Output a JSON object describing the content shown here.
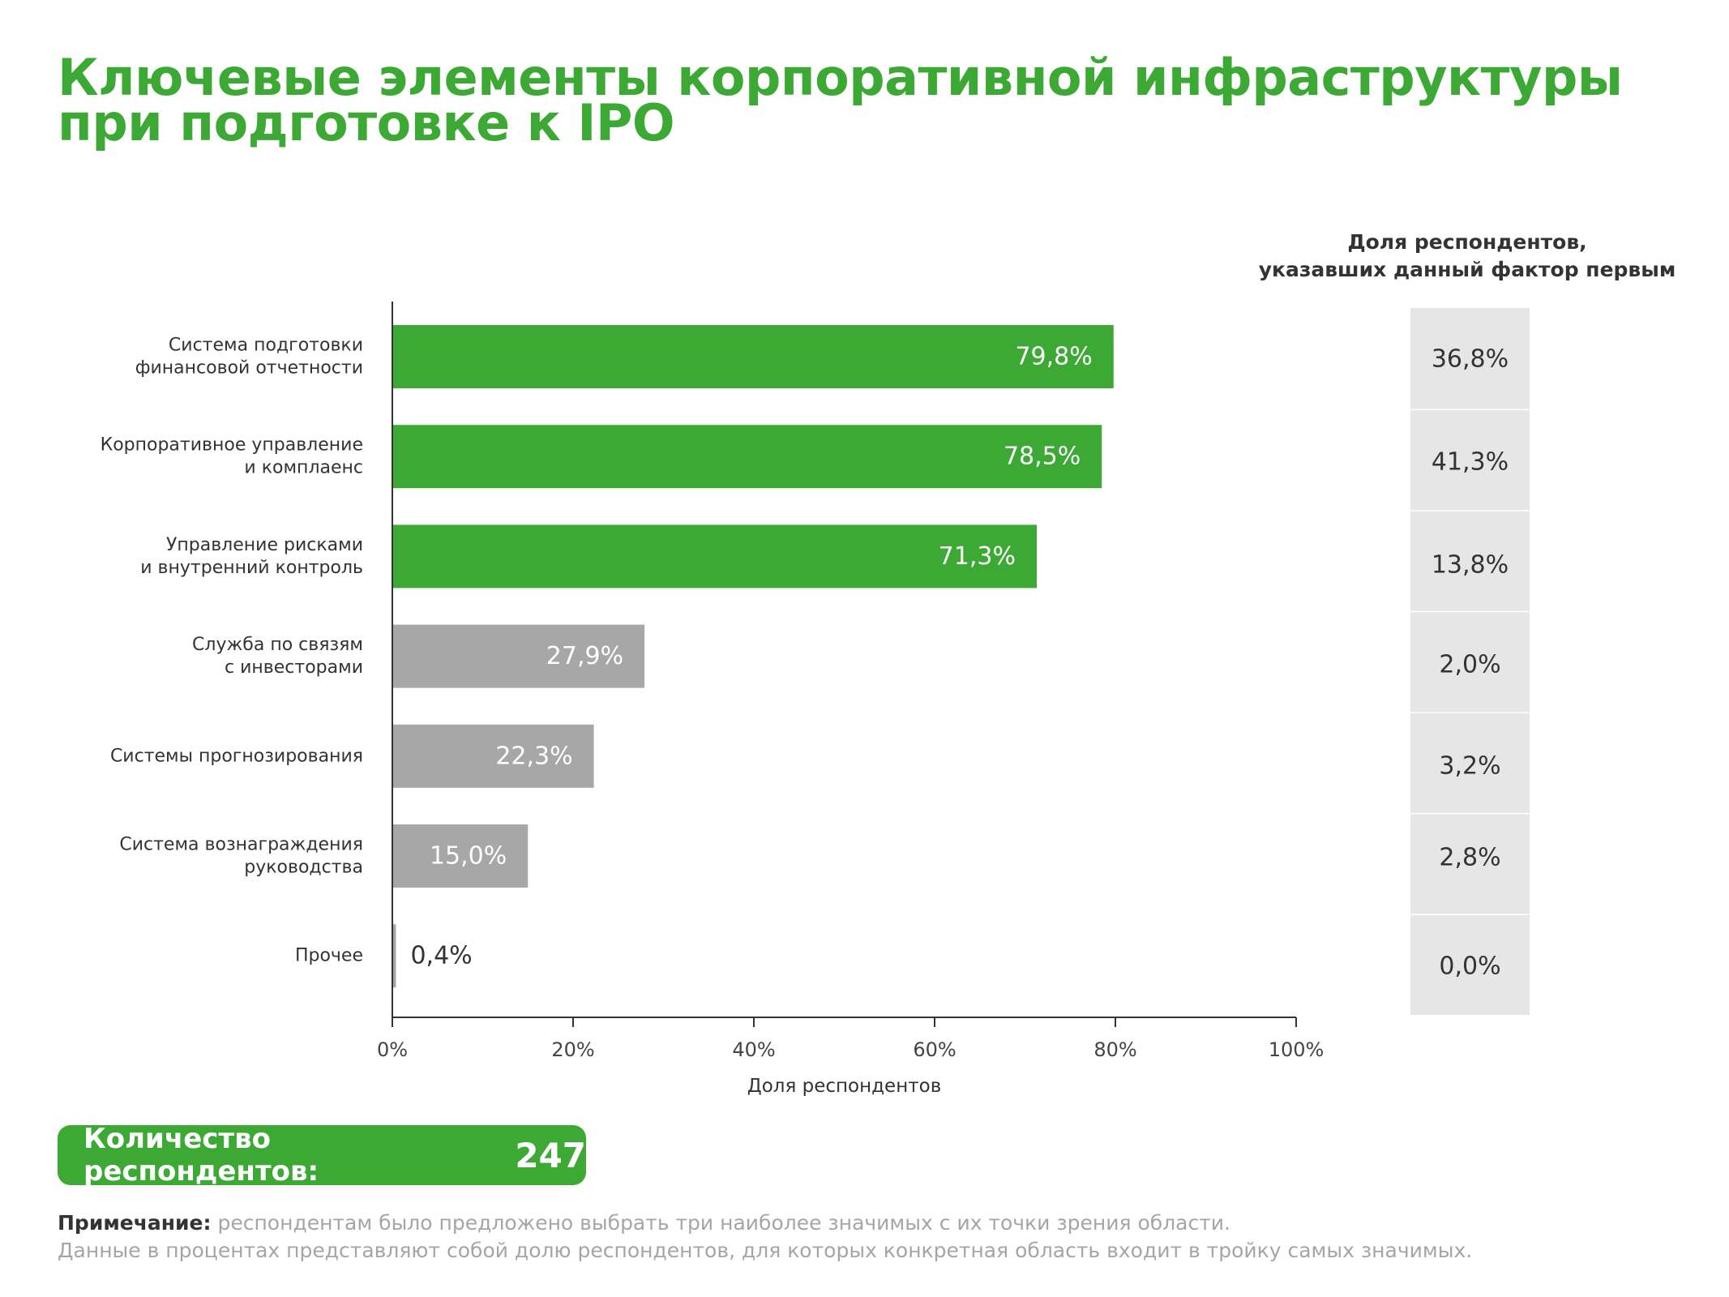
{
  "title": {
    "line1": "Ключевые элементы корпоративной инфраструктуры",
    "line2": "при подготовке к IPO"
  },
  "side_header": {
    "line1": "Доля респондентов,",
    "line2": "указавших данный фактор первым"
  },
  "respondents": {
    "label": "Количество респондентов:",
    "count": "247"
  },
  "note": {
    "label": "Примечание:",
    "line1": "респондентам было предложено выбрать три наиболее значимых с их точки зрения области.",
    "line2": "Данные в процентах представляют собой долю респондентов, для которых конкретная область входит в тройку самых значимых."
  },
  "colors": {
    "accent": "#3ca935",
    "gray_bar": "#a7a7a7",
    "side_cell": "#e6e6e6"
  },
  "chart_data": {
    "type": "bar",
    "orientation": "horizontal",
    "xlabel": "Доля респондентов",
    "xlim": [
      0,
      100
    ],
    "xticks": [
      "0%",
      "20%",
      "40%",
      "60%",
      "80%",
      "100%"
    ],
    "categories": [
      [
        "Система подготовки",
        "финансовой отчетности"
      ],
      [
        "Корпоративное управление",
        "и комплаенс"
      ],
      [
        "Управление рисками",
        "и внутренний контроль"
      ],
      [
        "Служба по связям",
        "с инвесторами"
      ],
      [
        "Системы прогнозирования"
      ],
      [
        "Система вознаграждения",
        "руководства"
      ],
      [
        "Прочее"
      ]
    ],
    "values": [
      79.8,
      78.5,
      71.3,
      27.9,
      22.3,
      15.0,
      0.4
    ],
    "value_labels": [
      "79,8%",
      "78,5%",
      "71,3%",
      "27,9%",
      "22,3%",
      "15,0%",
      "0,4%"
    ],
    "highlighted": [
      true,
      true,
      true,
      false,
      false,
      false,
      false
    ],
    "first_choice_values": [
      36.8,
      41.3,
      13.8,
      2.0,
      3.2,
      2.8,
      0.0
    ],
    "first_choice_labels": [
      "36,8%",
      "41,3%",
      "13,8%",
      "2,0%",
      "3,2%",
      "2,8%",
      "0,0%"
    ]
  }
}
